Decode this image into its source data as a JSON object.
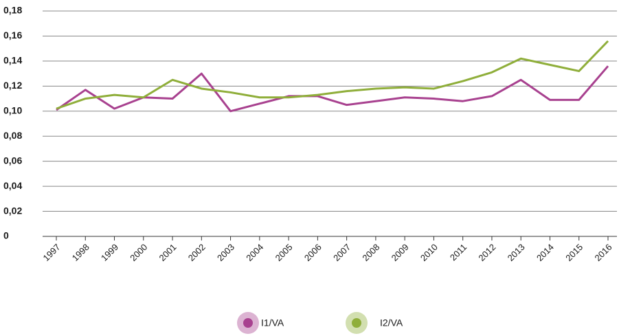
{
  "chart_data": {
    "type": "line",
    "categories": [
      "1997",
      "1998",
      "1999",
      "2000",
      "2001",
      "2002",
      "2003",
      "2004",
      "2005",
      "2006",
      "2007",
      "2008",
      "2009",
      "2010",
      "2011",
      "2012",
      "2013",
      "2014",
      "2015",
      "2016"
    ],
    "series": [
      {
        "name": "I1/VA",
        "color": "#a8418f",
        "values": [
          0.101,
          0.117,
          0.102,
          0.111,
          0.11,
          0.13,
          0.1,
          0.106,
          0.112,
          0.112,
          0.105,
          0.108,
          0.111,
          0.11,
          0.108,
          0.112,
          0.125,
          0.109,
          0.109,
          0.136
        ]
      },
      {
        "name": "I2/VA",
        "color": "#8fae3a",
        "values": [
          0.102,
          0.11,
          0.113,
          0.111,
          0.125,
          0.118,
          0.115,
          0.111,
          0.111,
          0.113,
          0.116,
          0.118,
          0.119,
          0.118,
          0.124,
          0.131,
          0.142,
          0.137,
          0.132,
          0.156
        ]
      }
    ],
    "ylim": [
      0,
      0.18
    ],
    "yticks": [
      0,
      {
        "value": 0.02,
        "label": "0,02"
      },
      {
        "value": 0.04,
        "label": "0,04"
      },
      {
        "value": 0.06,
        "label": "0,06"
      },
      {
        "value": 0.08,
        "label": "0,08"
      },
      {
        "value": 0.1,
        "label": "0,10"
      },
      {
        "value": 0.12,
        "label": "0,12"
      },
      {
        "value": 0.14,
        "label": "0,14"
      },
      {
        "value": 0.16,
        "label": "0,16"
      },
      {
        "value": 0.18,
        "label": "0,18"
      }
    ],
    "grid": true,
    "legend": "bottom"
  }
}
